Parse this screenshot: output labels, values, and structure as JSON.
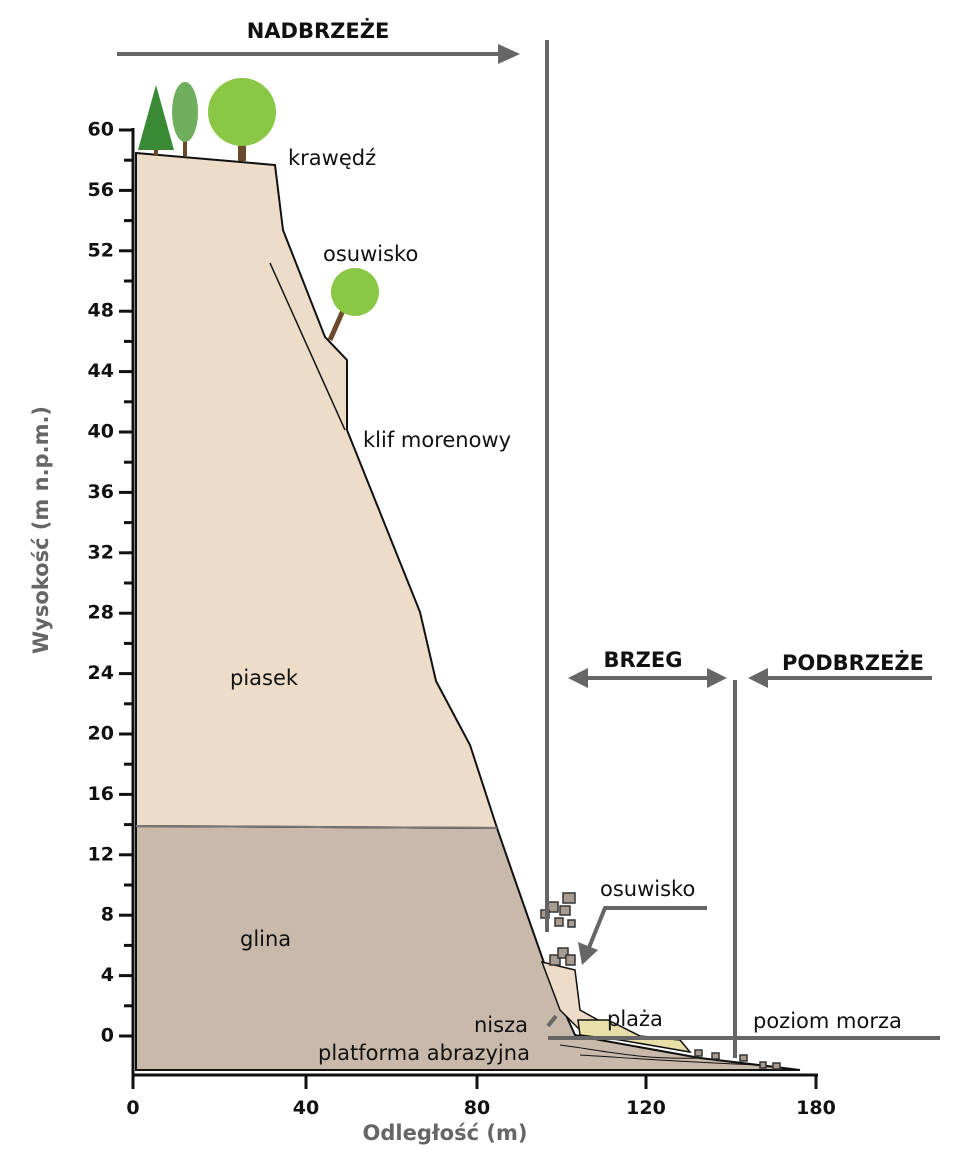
{
  "axis": {
    "y_title": "Wysokość (m n.p.m.)",
    "x_title": "Odległość (m)",
    "yticks": [
      60,
      56,
      52,
      48,
      44,
      40,
      36,
      32,
      28,
      24,
      20,
      16,
      12,
      8,
      4,
      0
    ],
    "xticks": [
      0,
      40,
      80,
      120,
      180
    ]
  },
  "zones": {
    "nadbrzeze": "NADBRZEŻE",
    "brzeg": "BRZEG",
    "podbrzeze": "PODBRZEŻE"
  },
  "labels": {
    "krawedz": "krawędź",
    "osuwisko_top": "osuwisko",
    "klif": "klif morenowy",
    "piasek": "piasek",
    "glina": "glina",
    "osuwisko_bottom": "osuwisko",
    "nisza": "nisza",
    "plaza": "plaża",
    "poziom": "poziom morza",
    "platforma": "platforma abrazyjna"
  }
}
